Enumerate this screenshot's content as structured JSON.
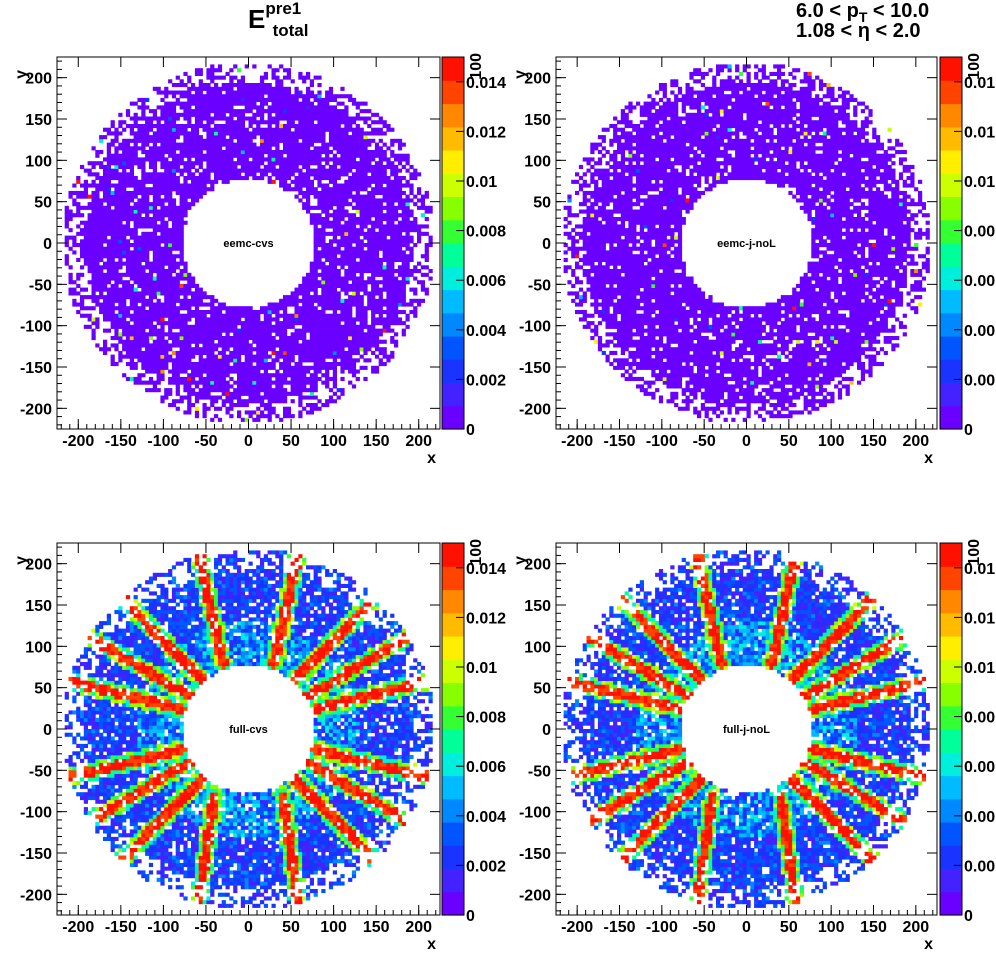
{
  "header": {
    "title_base": "E",
    "title_sup": "pre1",
    "title_sub": "total",
    "cut_line1": "6.0 < p",
    "cut_line1_sub": "T",
    "cut_line1_rest": " < 10.0",
    "cut_line2_pre": "1.08 < ",
    "cut_line2_sym": "η",
    "cut_line2_post": " < 2.0"
  },
  "colors": {
    "palette": [
      "#6a00ff",
      "#4422ff",
      "#1a33ff",
      "#0055ff",
      "#0088ff",
      "#00bbff",
      "#00eedd",
      "#00ff99",
      "#33ff33",
      "#88ff00",
      "#ccff00",
      "#ffee00",
      "#ffbb00",
      "#ff8800",
      "#ff4400",
      "#ff1100"
    ],
    "background": "#ffffff",
    "frame": "#000000"
  },
  "chart_data": [
    {
      "type": "heatmap",
      "label": "eemc-cvs",
      "xlabel": "x",
      "ylabel": "y",
      "xlim": [
        -225,
        225
      ],
      "ylim": [
        -225,
        225
      ],
      "x_ticks": [
        -200,
        -150,
        -100,
        -50,
        0,
        50,
        100,
        150,
        200
      ],
      "y_ticks": [
        -200,
        -150,
        -100,
        -50,
        0,
        50,
        100,
        150,
        200
      ],
      "z_range": [
        0,
        0.015
      ],
      "z_ticks": [
        "0",
        "0.002",
        "0.004",
        "0.006",
        "0.008",
        "0.01",
        "0.012",
        "0.014"
      ],
      "z_exponent_label": "100",
      "inner_radius": 78,
      "outer_radius": 218,
      "mean_level": 0.0004,
      "has_ribs": false
    },
    {
      "type": "heatmap",
      "label": "eemc-j-noL",
      "xlabel": "x",
      "ylabel": "y",
      "xlim": [
        -225,
        225
      ],
      "ylim": [
        -225,
        225
      ],
      "x_ticks": [
        -200,
        -150,
        -100,
        -50,
        0,
        50,
        100,
        150,
        200
      ],
      "y_ticks": [
        -200,
        -150,
        -100,
        -50,
        0,
        50,
        100,
        150,
        200
      ],
      "z_range": [
        0,
        0.015
      ],
      "z_ticks": [
        "0",
        "0.00",
        "0.00",
        "0.00",
        "0.00",
        "0.01",
        "0.01",
        "0.01"
      ],
      "z_exponent_label": "100",
      "inner_radius": 78,
      "outer_radius": 218,
      "mean_level": 0.0004,
      "has_ribs": false
    },
    {
      "type": "heatmap",
      "label": "full-cvs",
      "xlabel": "x",
      "ylabel": "y",
      "xlim": [
        -225,
        225
      ],
      "ylim": [
        -225,
        225
      ],
      "x_ticks": [
        -200,
        -150,
        -100,
        -50,
        0,
        50,
        100,
        150,
        200
      ],
      "y_ticks": [
        -200,
        -150,
        -100,
        -50,
        0,
        50,
        100,
        150,
        200
      ],
      "z_range": [
        0,
        0.015
      ],
      "z_ticks": [
        "0",
        "0.002",
        "0.004",
        "0.006",
        "0.008",
        "0.01",
        "0.012",
        "0.014"
      ],
      "z_exponent_label": "100",
      "inner_radius": 78,
      "outer_radius": 218,
      "mean_level": 0.0035,
      "has_ribs": true
    },
    {
      "type": "heatmap",
      "label": "full-j-noL",
      "xlabel": "x",
      "ylabel": "y",
      "xlim": [
        -225,
        225
      ],
      "ylim": [
        -225,
        225
      ],
      "x_ticks": [
        -200,
        -150,
        -100,
        -50,
        0,
        50,
        100,
        150,
        200
      ],
      "y_ticks": [
        -200,
        -150,
        -100,
        -50,
        0,
        50,
        100,
        150,
        200
      ],
      "z_range": [
        0,
        0.015
      ],
      "z_ticks": [
        "0",
        "0.00",
        "0.00",
        "0.00",
        "0.00",
        "0.01",
        "0.01",
        "0.01"
      ],
      "z_exponent_label": "100",
      "inner_radius": 78,
      "outer_radius": 218,
      "mean_level": 0.0035,
      "has_ribs": true
    }
  ]
}
